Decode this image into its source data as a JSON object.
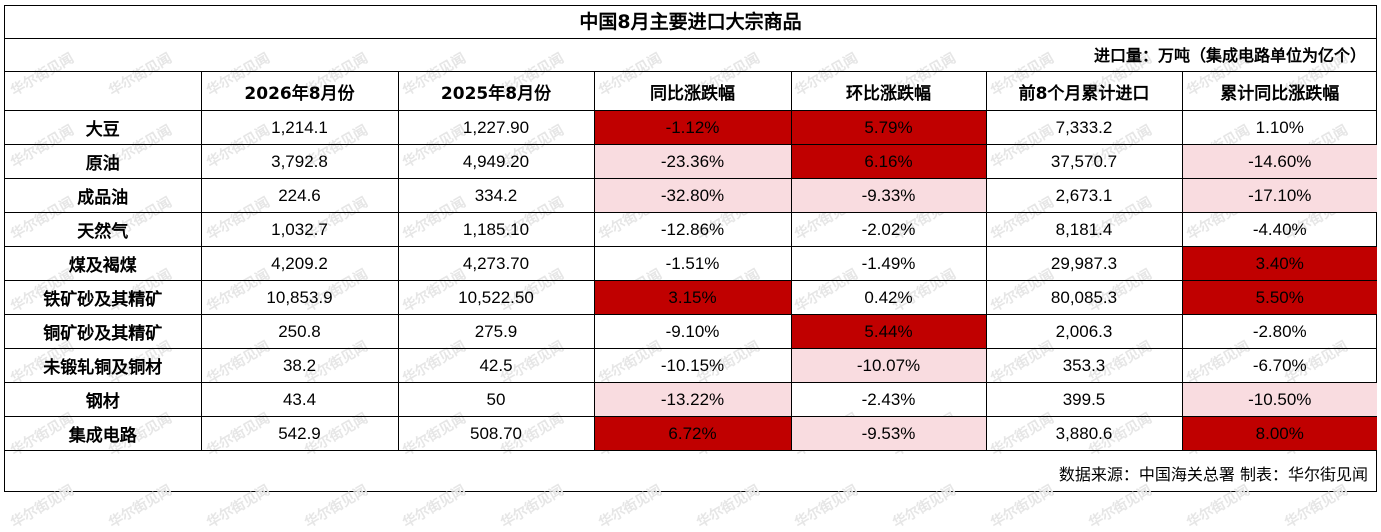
{
  "title": "中国8月主要进口大宗商品",
  "unit_note": "进口量：万吨（集成电路单位为亿个）",
  "watermark": "华尔街见闻",
  "columns": [
    "",
    "2026年8月份",
    "2025年8月份",
    "同比涨跌幅",
    "环比涨跌幅",
    "前8个月累计进口",
    "累计同比涨跌幅"
  ],
  "rows": [
    {
      "name": "大豆",
      "c1": "1,214.1",
      "c2": "1,227.90",
      "c3": "-1.12%",
      "c4": "5.79%",
      "c5": "7,333.2",
      "c6": "1.10%"
    },
    {
      "name": "原油",
      "c1": "3,792.8",
      "c2": "4,949.20",
      "c3": "-23.36%",
      "c4": "6.16%",
      "c5": "37,570.7",
      "c6": "-14.60%"
    },
    {
      "name": "成品油",
      "c1": "224.6",
      "c2": "334.2",
      "c3": "-32.80%",
      "c4": "-9.33%",
      "c5": "2,673.1",
      "c6": "-17.10%"
    },
    {
      "name": "天然气",
      "c1": "1,032.7",
      "c2": "1,185.10",
      "c3": "-12.86%",
      "c4": "-2.02%",
      "c5": "8,181.4",
      "c6": "-4.40%"
    },
    {
      "name": "煤及褐煤",
      "c1": "4,209.2",
      "c2": "4,273.70",
      "c3": "-1.51%",
      "c4": "-1.49%",
      "c5": "29,987.3",
      "c6": "3.40%"
    },
    {
      "name": "铁矿砂及其精矿",
      "c1": "10,853.9",
      "c2": "10,522.50",
      "c3": "3.15%",
      "c4": "0.42%",
      "c5": "80,085.3",
      "c6": "5.50%"
    },
    {
      "name": "铜矿砂及其精矿",
      "c1": "250.8",
      "c2": "275.9",
      "c3": "-9.10%",
      "c4": "5.44%",
      "c5": "2,006.3",
      "c6": "-2.80%"
    },
    {
      "name": "未锻轧铜及铜材",
      "c1": "38.2",
      "c2": "42.5",
      "c3": "-10.15%",
      "c4": "-10.07%",
      "c5": "353.3",
      "c6": "-6.70%"
    },
    {
      "name": "钢材",
      "c1": "43.4",
      "c2": "50",
      "c3": "-13.22%",
      "c4": "-2.43%",
      "c5": "399.5",
      "c6": "-10.50%"
    },
    {
      "name": "集成电路",
      "c1": "542.9",
      "c2": "508.70",
      "c3": "6.72%",
      "c4": "-9.53%",
      "c5": "3,880.6",
      "c6": "8.00%"
    }
  ],
  "highlight_colors": {
    "dark": "#c00000",
    "light": "#f9dce0"
  },
  "footer": "数据来源：中国海关总署 制表：华尔街见闻"
}
